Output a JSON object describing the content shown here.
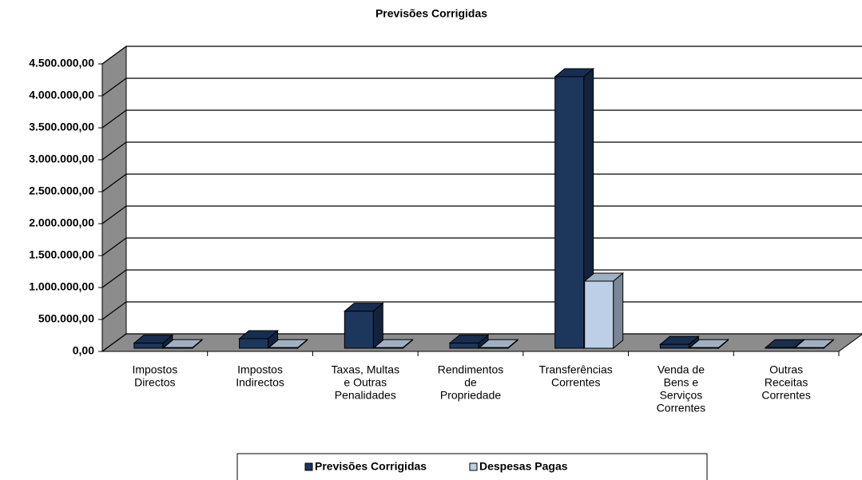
{
  "chart_data": {
    "type": "bar3d",
    "title": "Previsões Corrigidas",
    "categories": [
      [
        "Impostos",
        "Directos"
      ],
      [
        "Impostos",
        "Indirectos"
      ],
      [
        "Taxas, Multas",
        "e Outras",
        "Penalidades"
      ],
      [
        "Rendimentos",
        "de",
        "Propriedade"
      ],
      [
        "Transferências",
        "Correntes"
      ],
      [
        "Venda de",
        "Bens e",
        "Serviços",
        "Correntes"
      ],
      [
        "Outras",
        "Receitas",
        "Correntes"
      ]
    ],
    "series": [
      {
        "name": "Previsões Corrigidas",
        "color": "#1c365c",
        "values": [
          80000,
          150000,
          580000,
          80000,
          4250000,
          60000,
          10000
        ]
      },
      {
        "name": "Despesas Pagas",
        "color": "#bccfe6",
        "values": [
          10000,
          10000,
          10000,
          10000,
          1050000,
          10000,
          10000
        ]
      }
    ],
    "ylim": [
      0,
      4500000
    ],
    "yticks": [
      {
        "value": 0,
        "label": "0,00"
      },
      {
        "value": 500000,
        "label": "500.000,00"
      },
      {
        "value": 1000000,
        "label": "1.000.000,00"
      },
      {
        "value": 1500000,
        "label": "1.500.000,00"
      },
      {
        "value": 2000000,
        "label": "2.000.000,00"
      },
      {
        "value": 2500000,
        "label": "2.500.000,00"
      },
      {
        "value": 3000000,
        "label": "3.000.000,00"
      },
      {
        "value": 3500000,
        "label": "3.500.000,00"
      },
      {
        "value": 4000000,
        "label": "4.000.000,00"
      },
      {
        "value": 4500000,
        "label": "4.500.000,00"
      }
    ],
    "grid": true,
    "legend": "bottom"
  }
}
